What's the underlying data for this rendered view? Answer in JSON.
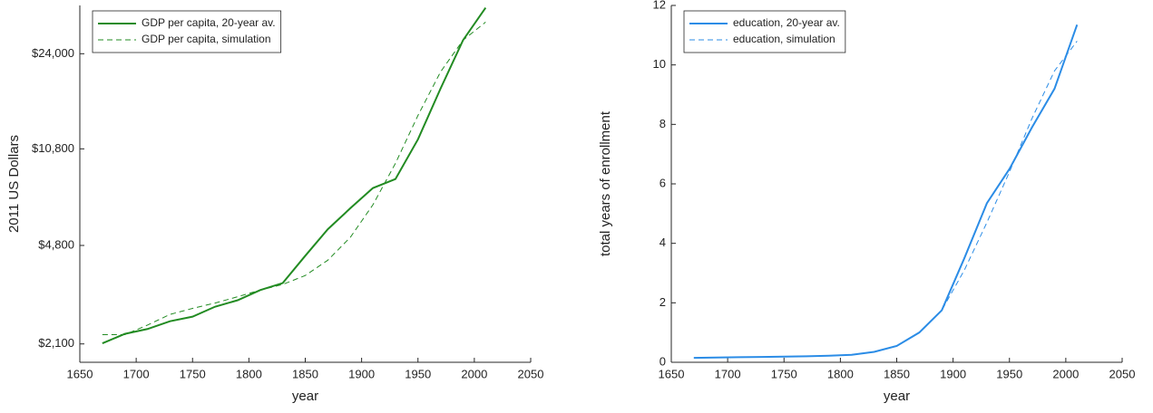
{
  "chart_data": [
    {
      "type": "line",
      "y_label": "2011 US Dollars",
      "x_label": "year",
      "log_y": true,
      "xlim": [
        1650,
        2050
      ],
      "xticks": [
        1650,
        1700,
        1750,
        1800,
        1850,
        1900,
        1950,
        2000,
        2050
      ],
      "ylim": [
        1800,
        36000
      ],
      "yticks": [
        {
          "value": 2100,
          "label": "$2,100"
        },
        {
          "value": 4800,
          "label": "$4,800"
        },
        {
          "value": 10800,
          "label": "$10,800"
        },
        {
          "value": 24000,
          "label": "$24,000"
        }
      ],
      "legend": "top-left",
      "x": [
        1670,
        1690,
        1710,
        1730,
        1750,
        1770,
        1790,
        1810,
        1830,
        1850,
        1870,
        1890,
        1910,
        1930,
        1950,
        1970,
        1990,
        2010
      ],
      "series": [
        {
          "name": "GDP per capita, 20-year av.",
          "color": "#228b22",
          "linestyle": "solid",
          "values": [
            2110,
            2285,
            2380,
            2540,
            2640,
            2870,
            3030,
            3300,
            3500,
            4400,
            5500,
            6560,
            7770,
            8380,
            11700,
            17900,
            26900,
            35300
          ]
        },
        {
          "name": "GDP per capita, simulation",
          "color": "#228b22",
          "linestyle": "dashed",
          "values": [
            2270,
            2270,
            2460,
            2690,
            2830,
            2960,
            3120,
            3300,
            3460,
            3730,
            4240,
            5140,
            6750,
            9560,
            14300,
            20600,
            26900,
            31300
          ]
        }
      ]
    },
    {
      "type": "line",
      "y_label": "total years of enrollment",
      "x_label": "year",
      "log_y": false,
      "xlim": [
        1650,
        2050
      ],
      "xticks": [
        1650,
        1700,
        1750,
        1800,
        1850,
        1900,
        1950,
        2000,
        2050
      ],
      "ylim": [
        0,
        12
      ],
      "yticks": [
        0,
        2,
        4,
        6,
        8,
        10,
        12
      ],
      "legend": "top-left",
      "x": [
        1670,
        1690,
        1710,
        1730,
        1750,
        1770,
        1790,
        1810,
        1830,
        1850,
        1870,
        1890,
        1910,
        1930,
        1950,
        1970,
        1990,
        2010
      ],
      "series": [
        {
          "name": "education, 20-year av.",
          "color": "#2b8ce6",
          "linestyle": "solid",
          "values": [
            0.15,
            0.16,
            0.17,
            0.18,
            0.19,
            0.2,
            0.22,
            0.25,
            0.35,
            0.55,
            1.0,
            1.75,
            3.5,
            5.35,
            6.5,
            7.9,
            9.2,
            11.35
          ]
        },
        {
          "name": "education, simulation",
          "color": "#2b8ce6",
          "linestyle": "dashed",
          "values": [
            0.15,
            0.16,
            0.17,
            0.18,
            0.19,
            0.2,
            0.22,
            0.25,
            0.35,
            0.55,
            1.0,
            1.75,
            3.1,
            4.7,
            6.4,
            8.2,
            9.8,
            10.8
          ]
        }
      ]
    }
  ]
}
